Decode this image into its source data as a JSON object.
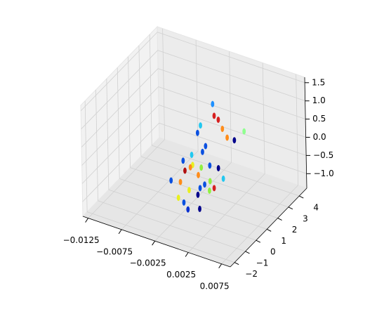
{
  "chart_data": {
    "type": "scatter3d",
    "x": [
      0.0,
      0.0,
      0.0,
      0.0,
      0.0,
      0.0,
      0.0,
      0.0,
      0.0,
      0.0,
      0.0,
      0.0,
      0.0,
      0.0,
      0.0,
      0.0,
      0.0,
      0.0,
      0.0,
      0.0,
      0.0,
      0.0,
      0.0,
      0.0,
      0.0,
      0.0,
      0.0,
      0.0,
      0.0,
      0.0,
      0.0,
      0.0,
      0.0,
      0.0
    ],
    "y": [
      1.58,
      1.7,
      2.07,
      0.44,
      2.43,
      0.16,
      4.4,
      2.85,
      3.5,
      0.87,
      0.58,
      -0.41,
      -1.2,
      -0.34,
      0.44,
      1.22,
      -1.05,
      -0.55,
      2.0,
      0.16,
      0.72,
      1.22,
      2.43,
      -2.33,
      -1.48,
      -0.7,
      0.3,
      1.15,
      1.58,
      0.09,
      -1.69,
      -1.2,
      -0.84,
      0.23
    ],
    "z": [
      1.31,
      0.95,
      0.73,
      1.07,
      0.37,
      0.95,
      -0.3,
      0.0,
      -0.27,
      0.37,
      0.3,
      0.52,
      0.6,
      0.22,
      -0.09,
      -0.27,
      0.28,
      0.22,
      -0.58,
      -0.21,
      -0.64,
      -0.7,
      -1.0,
      0.4,
      0.1,
      -0.36,
      -0.61,
      -0.94,
      -1.0,
      -0.73,
      -0.27,
      -0.55,
      -0.85,
      -1.16
    ],
    "colors": [
      "#1e90ff",
      "#d62020",
      "#d62020",
      "#22c8f0",
      "#ff8c1a",
      "#0a50e0",
      "#90ff90",
      "#ff8c1a",
      "#00008b",
      "#0a50e0",
      "#0a50e0",
      "#22c8f0",
      "#0a50e0",
      "#e8f020",
      "#90f040",
      "#0a50e0",
      "#b01010",
      "#ff8c1a",
      "#00008b",
      "#ff8c1a",
      "#0a50e0",
      "#90f040",
      "#22c8f0",
      "#0a50e0",
      "#ff8c1a",
      "#e8f020",
      "#0a50e0",
      "#90f040",
      "#d62020",
      "#00008b",
      "#e8f020",
      "#0a50e0",
      "#0a30d0",
      "#00008b"
    ],
    "xlim": [
      -0.0133,
      0.0088
    ],
    "ylim": [
      -2.4,
      4.7
    ],
    "zlim": [
      -1.4,
      1.65
    ],
    "xticks": [
      {
        "value": -0.0125,
        "label": "−0.0125"
      },
      {
        "value": -0.0075,
        "label": "−0.0075"
      },
      {
        "value": -0.0025,
        "label": "−0.0025"
      },
      0.0025,
      0.0075
    ],
    "yticks": [
      {
        "value": -2,
        "label": "−2"
      },
      {
        "value": -1,
        "label": "−1"
      },
      0,
      1,
      2,
      3,
      4
    ],
    "zticks": [
      {
        "value": -1,
        "label": "−1.0"
      },
      {
        "value": -0.5,
        "label": "−0.5"
      },
      {
        "value": 0,
        "label": "0.0"
      },
      0.5,
      {
        "value": 1,
        "label": "1.0"
      },
      1.5
    ],
    "grid": true
  }
}
